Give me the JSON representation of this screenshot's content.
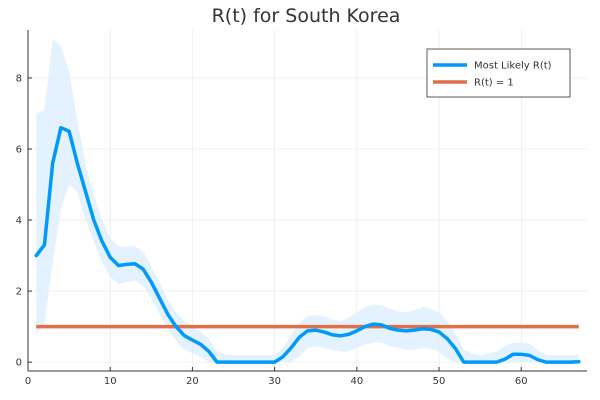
{
  "chart_data": {
    "type": "line",
    "title": "R(t) for South Korea",
    "xlabel": "",
    "ylabel": "",
    "xlim": [
      0,
      68
    ],
    "ylim": [
      -0.25,
      9.35
    ],
    "xticks": [
      0,
      10,
      20,
      30,
      40,
      50,
      60
    ],
    "yticks": [
      0,
      2,
      4,
      6,
      8
    ],
    "grid": true,
    "legend_position": "top-right",
    "colors": {
      "most_likely": "#009AFA",
      "band": "#D9EEFD",
      "threshold": "#E26F46"
    },
    "series": [
      {
        "name": "Most Likely R(t)",
        "x": [
          1,
          2,
          3,
          4,
          5,
          6,
          7,
          8,
          9,
          10,
          11,
          12,
          13,
          14,
          15,
          16,
          17,
          18,
          19,
          20,
          21,
          22,
          23,
          24,
          25,
          26,
          27,
          28,
          29,
          30,
          31,
          32,
          33,
          34,
          35,
          36,
          37,
          38,
          39,
          40,
          41,
          42,
          43,
          44,
          45,
          46,
          47,
          48,
          49,
          50,
          51,
          52,
          53,
          54,
          55,
          56,
          57,
          58,
          59,
          60,
          61,
          62,
          63,
          64,
          65,
          66,
          67
        ],
        "y": [
          3.0,
          3.3,
          5.6,
          6.6,
          6.5,
          5.6,
          4.8,
          4.0,
          3.4,
          2.95,
          2.72,
          2.75,
          2.77,
          2.62,
          2.25,
          1.8,
          1.35,
          1.0,
          0.75,
          0.62,
          0.5,
          0.3,
          0.0,
          0.0,
          0.0,
          0.0,
          0.0,
          0.0,
          0.0,
          0.0,
          0.15,
          0.4,
          0.7,
          0.88,
          0.9,
          0.85,
          0.77,
          0.74,
          0.78,
          0.88,
          1.0,
          1.07,
          1.05,
          0.95,
          0.9,
          0.88,
          0.9,
          0.94,
          0.92,
          0.85,
          0.66,
          0.38,
          0.0,
          0.0,
          0.0,
          0.0,
          0.0,
          0.08,
          0.22,
          0.22,
          0.19,
          0.07,
          0.0,
          0.0,
          0.0,
          0.0,
          0.01
        ]
      },
      {
        "name": "R(t) = 1",
        "x": [
          1,
          67
        ],
        "y": [
          1,
          1
        ]
      }
    ],
    "band": {
      "x": [
        1,
        2,
        3,
        4,
        5,
        6,
        7,
        8,
        9,
        10,
        11,
        12,
        13,
        14,
        15,
        16,
        17,
        18,
        19,
        20,
        21,
        22,
        23,
        24,
        25,
        26,
        27,
        28,
        29,
        30,
        31,
        32,
        33,
        34,
        35,
        36,
        37,
        38,
        39,
        40,
        41,
        42,
        43,
        44,
        45,
        46,
        47,
        48,
        49,
        50,
        51,
        52,
        53,
        54,
        55,
        56,
        57,
        58,
        59,
        60,
        61,
        62,
        63,
        64,
        65,
        66,
        67
      ],
      "lower": [
        0.8,
        1.1,
        2.8,
        4.3,
        5.0,
        4.8,
        4.0,
        3.4,
        2.8,
        2.4,
        2.2,
        2.25,
        2.3,
        2.15,
        1.8,
        1.35,
        0.95,
        0.6,
        0.35,
        0.25,
        0.15,
        0.0,
        0.0,
        0.0,
        0.0,
        0.0,
        0.0,
        0.0,
        0.0,
        0.0,
        0.0,
        0.0,
        0.15,
        0.4,
        0.45,
        0.4,
        0.35,
        0.3,
        0.3,
        0.4,
        0.5,
        0.55,
        0.55,
        0.45,
        0.4,
        0.35,
        0.35,
        0.4,
        0.38,
        0.3,
        0.1,
        0.0,
        0.0,
        0.0,
        0.0,
        0.0,
        0.0,
        0.0,
        0.0,
        0.0,
        0.0,
        0.0,
        0.0,
        0.0,
        0.0,
        0.0,
        0.0
      ],
      "upper": [
        7.0,
        7.1,
        9.1,
        8.9,
        8.2,
        6.8,
        5.6,
        4.7,
        4.0,
        3.5,
        3.25,
        3.25,
        3.27,
        3.1,
        2.7,
        2.25,
        1.75,
        1.4,
        1.15,
        1.0,
        0.85,
        0.65,
        0.3,
        0.22,
        0.2,
        0.2,
        0.2,
        0.2,
        0.2,
        0.2,
        0.4,
        0.75,
        1.1,
        1.3,
        1.32,
        1.3,
        1.2,
        1.15,
        1.25,
        1.4,
        1.55,
        1.62,
        1.6,
        1.5,
        1.42,
        1.4,
        1.45,
        1.55,
        1.5,
        1.4,
        1.15,
        0.8,
        0.35,
        0.25,
        0.2,
        0.25,
        0.3,
        0.45,
        0.55,
        0.55,
        0.52,
        0.35,
        0.2,
        0.2,
        0.2,
        0.2,
        0.2
      ]
    }
  }
}
